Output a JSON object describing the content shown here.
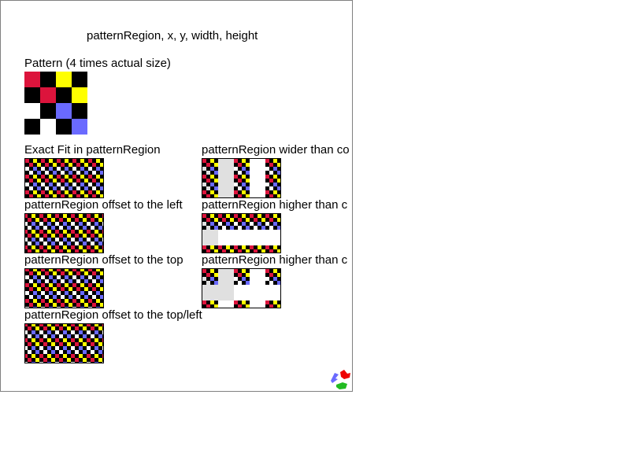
{
  "page": {
    "title": "patternRegion, x, y, width, height",
    "pattern_label": "Pattern (4 times actual size)"
  },
  "pattern": {
    "colors": {
      "r": "#dc143c",
      "k": "#000000",
      "y": "#ffff00",
      "b": "#6a6aff",
      "w": "#ffffff"
    },
    "rows": [
      [
        "r",
        "k",
        "y",
        "k"
      ],
      [
        "k",
        "r",
        "k",
        "y"
      ],
      [
        "w",
        "k",
        "b",
        "k"
      ],
      [
        "k",
        "w",
        "k",
        "b"
      ]
    ]
  },
  "examples": [
    {
      "id": "exact-fit",
      "label": "Exact Fit in patternRegion"
    },
    {
      "id": "offset-left",
      "label": "patternRegion offset to the left"
    },
    {
      "id": "offset-top",
      "label": "patternRegion offset to the top"
    },
    {
      "id": "offset-top-left",
      "label": "patternRegion offset to the top/left"
    },
    {
      "id": "wider",
      "label": "patternRegion wider than co"
    },
    {
      "id": "higher-1",
      "label": "patternRegion higher than c"
    },
    {
      "id": "higher-2",
      "label": "patternRegion higher than c"
    }
  ]
}
